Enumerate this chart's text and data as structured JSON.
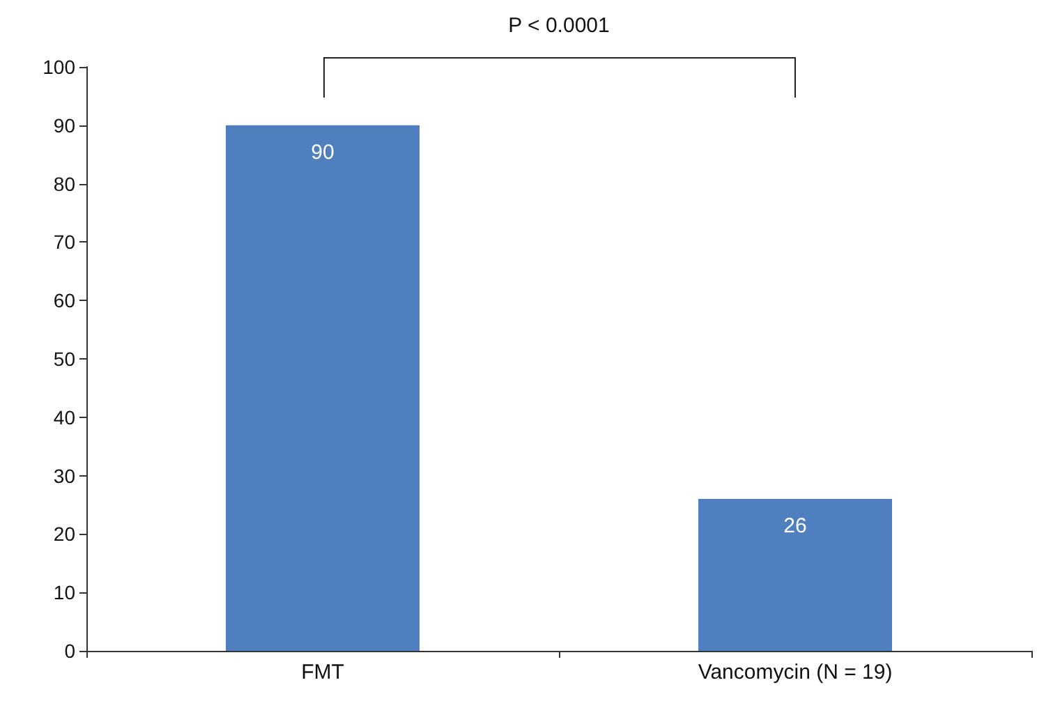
{
  "chart_data": {
    "type": "bar",
    "categories": [
      "FMT",
      "Vancomycin (N = 19)"
    ],
    "values": [
      90,
      26
    ],
    "color": "#4f7fbe",
    "ylim": [
      0,
      100
    ],
    "yticks": [
      0,
      10,
      20,
      30,
      40,
      50,
      60,
      70,
      80,
      90,
      100
    ],
    "grid": false,
    "data_labels": true,
    "annotations": [
      "P < 0.0001"
    ]
  }
}
